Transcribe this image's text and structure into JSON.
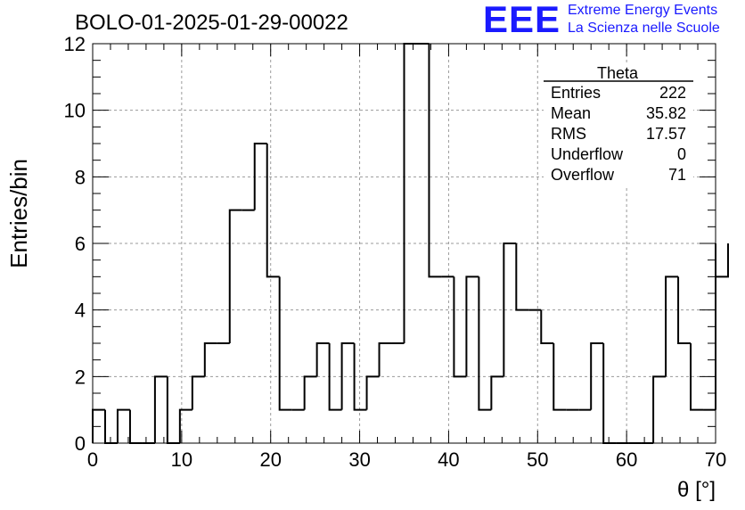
{
  "header": {
    "title": "BOLO-01-2025-01-29-00022",
    "logo_letters": "EEE",
    "org_line1": "Extreme Energy Events",
    "org_line2": "La Scienza nelle Scuole"
  },
  "stats_box": {
    "title": "Theta",
    "rows": [
      {
        "label": "Entries",
        "value": "222"
      },
      {
        "label": "Mean",
        "value": "35.82"
      },
      {
        "label": "RMS",
        "value": "17.57"
      },
      {
        "label": "Underflow",
        "value": "0"
      },
      {
        "label": "Overflow",
        "value": "71"
      }
    ]
  },
  "colors": {
    "line": "#000000",
    "grid": "#9a9a9a",
    "logo": "#1a1aff"
  },
  "chart_data": {
    "type": "bar",
    "histogram": true,
    "title": "BOLO-01-2025-01-29-00022",
    "xlabel": "θ [°]",
    "ylabel": "Entries/bin",
    "xlim": [
      0,
      70
    ],
    "ylim": [
      0,
      12
    ],
    "bin_width": 1.4,
    "values": [
      1,
      0,
      1,
      0,
      0,
      2,
      0,
      1,
      2,
      3,
      3,
      7,
      7,
      9,
      5,
      1,
      1,
      2,
      3,
      1,
      3,
      1,
      2,
      3,
      3,
      12,
      12,
      5,
      5,
      2,
      5,
      1,
      2,
      6,
      4,
      4,
      3,
      1,
      1,
      1,
      3,
      0,
      0,
      0,
      0,
      2,
      5,
      3,
      1,
      1,
      6,
      5
    ],
    "xticks": [
      "0",
      "10",
      "20",
      "30",
      "40",
      "50",
      "60",
      "70"
    ],
    "yticks": [
      "0",
      "2",
      "4",
      "6",
      "8",
      "10",
      "12"
    ],
    "grid": true,
    "legend": "top-right"
  }
}
